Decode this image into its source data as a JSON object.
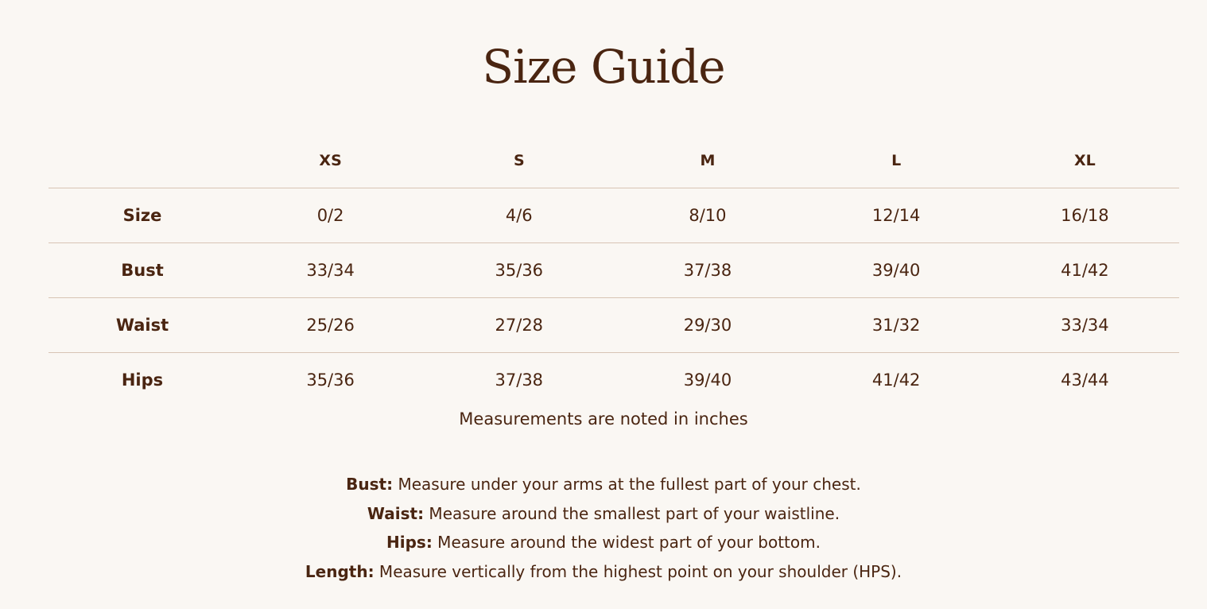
{
  "title": "Size Guide",
  "columns": [
    "XS",
    "S",
    "M",
    "L",
    "XL"
  ],
  "rows": [
    {
      "label": "Size",
      "values": [
        "0/2",
        "4/6",
        "8/10",
        "12/14",
        "16/18"
      ]
    },
    {
      "label": "Bust",
      "values": [
        "33/34",
        "35/36",
        "37/38",
        "39/40",
        "41/42"
      ]
    },
    {
      "label": "Waist",
      "values": [
        "25/26",
        "27/28",
        "29/30",
        "31/32",
        "33/34"
      ]
    },
    {
      "label": "Hips",
      "values": [
        "35/36",
        "37/38",
        "39/40",
        "41/42",
        "43/44"
      ]
    }
  ],
  "note": "Measurements are noted in inches",
  "definitions": [
    {
      "term": "Bust:",
      "text": " Measure under your arms at the fullest part of your chest."
    },
    {
      "term": "Waist:",
      "text": " Measure around the smallest part of your waistline."
    },
    {
      "term": "Hips:",
      "text": " Measure around the widest part of your bottom."
    },
    {
      "term": "Length:",
      "text": " Measure vertically from the highest point on your shoulder (HPS)."
    }
  ]
}
